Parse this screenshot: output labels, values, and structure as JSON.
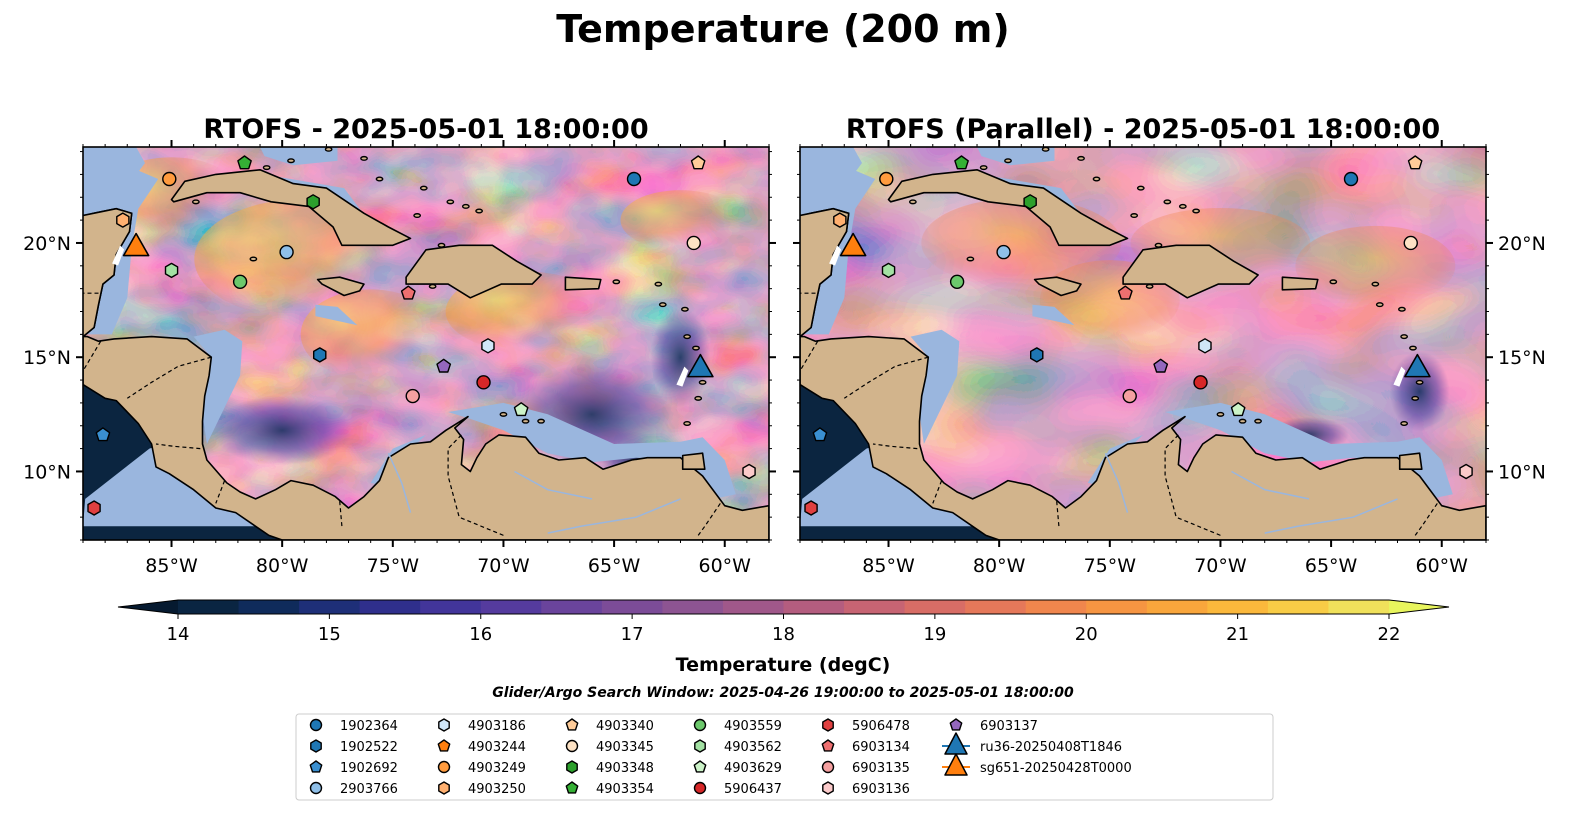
{
  "figure": {
    "title": "Temperature (200 m)",
    "window_text": "Glider/Argo Search Window: 2025-04-26 19:00:00 to 2025-05-01 18:00:00"
  },
  "panels": [
    {
      "title": "RTOFS - 2025-05-01 18:00:00",
      "variant": "rtofs"
    },
    {
      "title": "RTOFS (Parallel) - 2025-05-01 18:00:00",
      "variant": "parallel"
    }
  ],
  "map": {
    "extent": {
      "lon": [
        -89,
        -58
      ],
      "lat": [
        7,
        24.2
      ]
    },
    "lon_ticks": [
      {
        "value": -85,
        "label": "85°W"
      },
      {
        "value": -80,
        "label": "80°W"
      },
      {
        "value": -75,
        "label": "75°W"
      },
      {
        "value": -70,
        "label": "70°W"
      },
      {
        "value": -65,
        "label": "65°W"
      },
      {
        "value": -60,
        "label": "60°W"
      }
    ],
    "lat_ticks": [
      {
        "value": 20,
        "label": "20°N"
      },
      {
        "value": 15,
        "label": "15°N"
      },
      {
        "value": 10,
        "label": "10°N"
      }
    ]
  },
  "colors": {
    "land": "#d2b48c",
    "shelf": "#9ab6de",
    "coast": "#000000",
    "border": "#000000",
    "river": "#9ab6de"
  },
  "colorbar": {
    "label": "Temperature (degC)",
    "min": 14,
    "max": 22,
    "step": 0.5,
    "ticks": [
      14,
      15,
      16,
      17,
      18,
      19,
      20,
      21,
      22
    ],
    "tick_labels": [
      "14",
      "15",
      "16",
      "17",
      "18",
      "19",
      "20",
      "21",
      "22"
    ],
    "colors": [
      "#0a2542",
      "#0f2b5b",
      "#1e2f78",
      "#2f2f8c",
      "#42359a",
      "#553b9e",
      "#6a449c",
      "#7c4c98",
      "#8d5492",
      "#a0588a",
      "#b45d7f",
      "#c76473",
      "#d86d66",
      "#e5785a",
      "#f0864d",
      "#f69542",
      "#f9a63c",
      "#fbb83c",
      "#f8cc46",
      "#f0e15b"
    ],
    "under_color": "#061a30",
    "over_color": "#e8f55d"
  },
  "legend": {
    "entries": [
      {
        "label": "1902364",
        "marker": "circle",
        "color": "#1f77b4"
      },
      {
        "label": "1902522",
        "marker": "hexagon",
        "color": "#1f77b4"
      },
      {
        "label": "1902692",
        "marker": "pentagon",
        "color": "#3a8fd0"
      },
      {
        "label": "2903766",
        "marker": "circle",
        "color": "#8fbfe8"
      },
      {
        "label": "4903186",
        "marker": "hexagon",
        "color": "#cfe6f8"
      },
      {
        "label": "4903244",
        "marker": "pentagon",
        "color": "#ff7f0e"
      },
      {
        "label": "4903249",
        "marker": "circle",
        "color": "#ff9b3e"
      },
      {
        "label": "4903250",
        "marker": "hexagon",
        "color": "#ffb070"
      },
      {
        "label": "4903340",
        "marker": "pentagon",
        "color": "#ffcc99"
      },
      {
        "label": "4903345",
        "marker": "circle",
        "color": "#fde2c4"
      },
      {
        "label": "4903348",
        "marker": "hexagon",
        "color": "#2ca02c"
      },
      {
        "label": "4903354",
        "marker": "pentagon",
        "color": "#35b035"
      },
      {
        "label": "4903559",
        "marker": "circle",
        "color": "#6cc86c"
      },
      {
        "label": "4903562",
        "marker": "hexagon",
        "color": "#a3e1a3"
      },
      {
        "label": "4903629",
        "marker": "pentagon",
        "color": "#ccf3c8"
      },
      {
        "label": "5906437",
        "marker": "circle",
        "color": "#d62728"
      },
      {
        "label": "5906478",
        "marker": "hexagon",
        "color": "#e04040"
      },
      {
        "label": "6903134",
        "marker": "pentagon",
        "color": "#ee6f70"
      },
      {
        "label": "6903135",
        "marker": "circle",
        "color": "#f5a0a0"
      },
      {
        "label": "6903136",
        "marker": "hexagon",
        "color": "#fbcaca"
      },
      {
        "label": "6903137",
        "marker": "pentagon",
        "color": "#9467bd"
      },
      {
        "label": "ru36-20250408T1846",
        "marker": "triangle",
        "color": "#1f77b4",
        "line": true
      },
      {
        "label": "sg651-20250428T0000",
        "marker": "triangle",
        "color": "#ff7f0e",
        "line": true
      }
    ]
  },
  "floats": [
    {
      "id": "1902364",
      "lon": -64.1,
      "lat": 22.8
    },
    {
      "id": "2903766",
      "lon": -79.8,
      "lat": 19.6
    },
    {
      "id": "4903249",
      "lon": -85.1,
      "lat": 22.8
    },
    {
      "id": "4903250",
      "lon": -87.2,
      "lat": 21.0
    },
    {
      "id": "4903345",
      "lon": -61.4,
      "lat": 20.0
    },
    {
      "id": "4903340",
      "lon": -61.2,
      "lat": 23.5
    },
    {
      "id": "4903354",
      "lon": -81.7,
      "lat": 23.5
    },
    {
      "id": "4903348",
      "lon": -78.6,
      "lat": 21.8
    },
    {
      "id": "4903562",
      "lon": -85.0,
      "lat": 18.8
    },
    {
      "id": "4903559",
      "lon": -81.9,
      "lat": 18.3
    },
    {
      "id": "6903134",
      "lon": -74.3,
      "lat": 17.8
    },
    {
      "id": "1902522",
      "lon": -78.3,
      "lat": 15.1
    },
    {
      "id": "6903137",
      "lon": -72.7,
      "lat": 14.6
    },
    {
      "id": "4903186",
      "lon": -70.7,
      "lat": 15.5
    },
    {
      "id": "5906437",
      "lon": -70.9,
      "lat": 13.9
    },
    {
      "id": "6903135",
      "lon": -74.1,
      "lat": 13.3
    },
    {
      "id": "4903629",
      "lon": -69.2,
      "lat": 12.7
    },
    {
      "id": "1902692",
      "lon": -88.1,
      "lat": 11.6
    },
    {
      "id": "6903136",
      "lon": -58.9,
      "lat": 10.0
    },
    {
      "id": "5906478",
      "lon": -88.5,
      "lat": 8.4
    }
  ],
  "gliders": [
    {
      "id": "ru36-20250408T1846",
      "lon": -61.1,
      "lat": 14.5
    },
    {
      "id": "sg651-20250428T0000",
      "lon": -86.6,
      "lat": 19.8
    }
  ]
}
